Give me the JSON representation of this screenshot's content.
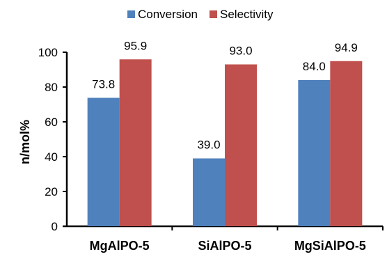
{
  "chart_data": {
    "type": "bar",
    "categories": [
      "MgAlPO-5",
      "SiAlPO-5",
      "MgSiAlPO-5"
    ],
    "series": [
      {
        "name": "Conversion",
        "values": [
          73.8,
          39.0,
          84.0
        ],
        "data_labels": [
          "73.8",
          "39.0",
          "84.0"
        ],
        "color": "#4F81BD"
      },
      {
        "name": "Selectivity",
        "values": [
          95.9,
          93.0,
          94.9
        ],
        "data_labels": [
          "95.9",
          "93.0",
          "94.9"
        ],
        "color": "#C0504D"
      }
    ],
    "title": "",
    "xlabel": "",
    "ylabel": "n/mol%",
    "ylim": [
      0,
      100
    ],
    "yticks": [
      "0",
      "20",
      "40",
      "60",
      "80",
      "100"
    ],
    "grid": false,
    "legend": "top"
  }
}
